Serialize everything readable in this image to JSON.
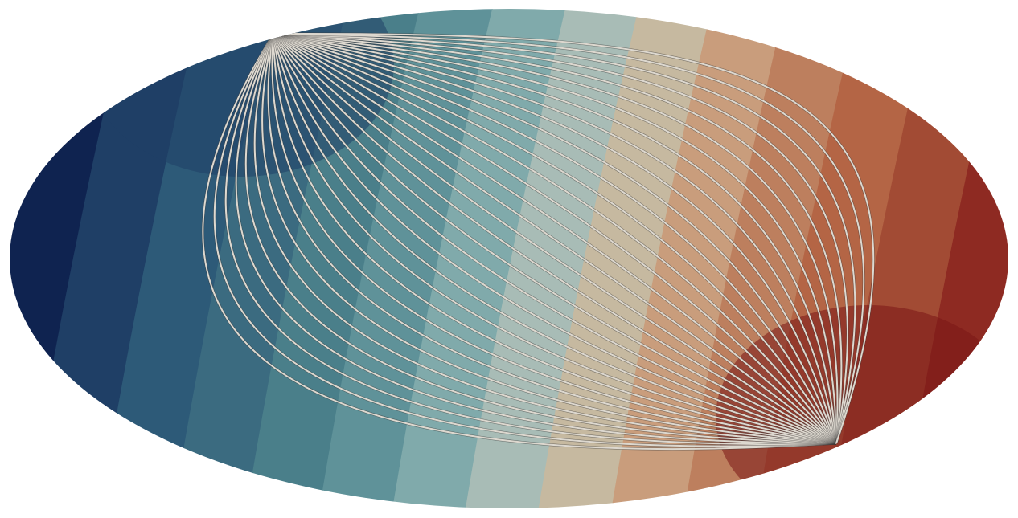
{
  "figure": {
    "projection": "ellipse",
    "color_bands": [
      "#0f2350",
      "#1f3f66",
      "#2d5a78",
      "#3b6b80",
      "#4a7f8a",
      "#5f9299",
      "#80aaab",
      "#a8bcb6",
      "#c6b9a0",
      "#c99d7c",
      "#bd7f5e",
      "#b46545",
      "#a24b34",
      "#8e2a22",
      "#7a1616"
    ],
    "streamline_color": "#ddd8cf",
    "streamline_edge_color": "#3a3a3a",
    "source_pole": "upper-left",
    "sink_pole": "lower-right",
    "streamline_count": 34
  }
}
